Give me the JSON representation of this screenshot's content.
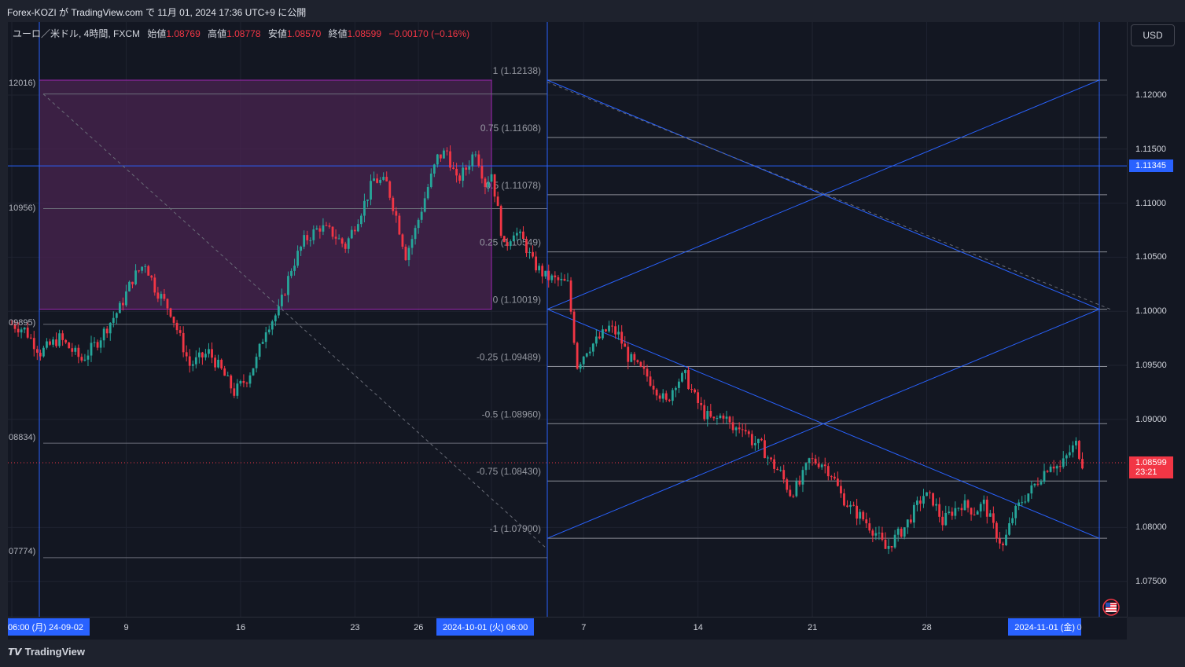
{
  "header": {
    "published": "Forex-KOZI が TradingView.com で 11月 01, 2024 17:36 UTC+9 に公開"
  },
  "legend": {
    "symbol": "ユーロ／米ドル, 4時間, FXCM",
    "open_label": "始値",
    "open": "1.08769",
    "high_label": "高値",
    "high": "1.08778",
    "low_label": "安値",
    "low": "1.08570",
    "close_label": "終値",
    "close": "1.08599",
    "change": "−0.00170 (−0.16%)"
  },
  "currency_button": "USD",
  "footer_logo": "TradingView",
  "colors": {
    "up": "#26a69a",
    "down": "#f23645",
    "blue": "#2962ff",
    "fib_box": "#4a2450",
    "fib_line": "#9c27b0",
    "background": "#131722"
  },
  "chart_data": {
    "type": "candlestick",
    "title": "",
    "price_axis": {
      "ylim": [
        1.0725,
        1.1255
      ],
      "ticks": [
        "1.12000",
        "1.11500",
        "1.11000",
        "1.10500",
        "1.10000",
        "1.09500",
        "1.09000",
        "1.08000",
        "1.07500"
      ]
    },
    "price_tags": [
      {
        "label": "1.11345",
        "value": 1.11345,
        "color": "#2962ff"
      },
      {
        "label": "1.08599",
        "value": 1.08599,
        "sub": "23:21",
        "color": "#f23645"
      }
    ],
    "time_axis": {
      "ticks": [
        {
          "label": "24-09-02 (月)   06:00",
          "highlight": true,
          "index": 0
        },
        {
          "label": "9",
          "index": 36
        },
        {
          "label": "16",
          "index": 72
        },
        {
          "label": "23",
          "index": 108
        },
        {
          "label": "26",
          "index": 128
        },
        {
          "label": "2024-10-01 (火)   06:00",
          "highlight": true,
          "index": 151
        },
        {
          "label": "7",
          "index": 180
        },
        {
          "label": "14",
          "index": 216
        },
        {
          "label": "21",
          "index": 252
        },
        {
          "label": "28",
          "index": 288
        },
        {
          "label": "2024-11-01 (金)",
          "highlight": true,
          "index": 331
        },
        {
          "label": "0",
          "index": 336
        }
      ]
    },
    "left_labels": [
      {
        "label": "12016)",
        "value": 1.12016
      },
      {
        "label": "10956)",
        "value": 1.10956
      },
      {
        "label": "09895)",
        "value": 1.09895
      },
      {
        "label": "08834)",
        "value": 1.08834
      },
      {
        "label": "07774)",
        "value": 1.07774
      }
    ],
    "fib_levels": [
      {
        "label": "1 (1.12138)",
        "value": 1.12138
      },
      {
        "label": "0.75 (1.11608)",
        "value": 1.11608
      },
      {
        "label": "0.5 (1.11078)",
        "value": 1.11078
      },
      {
        "label": "0.25 (1.10549)",
        "value": 1.10549
      },
      {
        "label": "0 (1.10019)",
        "value": 1.10019
      },
      {
        "label": "-0.25 (1.09489)",
        "value": 1.09489
      },
      {
        "label": "-0.5 (1.08960)",
        "value": 1.0896
      },
      {
        "label": "-0.75 (1.08430)",
        "value": 1.0843
      },
      {
        "label": "-1 (1.07900)",
        "value": 1.079
      }
    ],
    "horizontal_line": 1.11345,
    "last_price": 1.08599,
    "candle_count": 338,
    "path_points": [
      [
        0,
        1.0988
      ],
      [
        4,
        1.0983
      ],
      [
        9,
        1.0962
      ],
      [
        15,
        1.0975
      ],
      [
        22,
        1.0955
      ],
      [
        27,
        1.0972
      ],
      [
        31,
        1.099
      ],
      [
        34,
        1.1003
      ],
      [
        38,
        1.103
      ],
      [
        42,
        1.1045
      ],
      [
        45,
        1.1022
      ],
      [
        50,
        1.1
      ],
      [
        56,
        1.095
      ],
      [
        62,
        1.0962
      ],
      [
        66,
        1.0945
      ],
      [
        70,
        1.0925
      ],
      [
        74,
        1.0938
      ],
      [
        77,
        1.0955
      ],
      [
        80,
        1.0985
      ],
      [
        84,
        1.1
      ],
      [
        88,
        1.104
      ],
      [
        92,
        1.1065
      ],
      [
        97,
        1.1078
      ],
      [
        101,
        1.1072
      ],
      [
        105,
        1.106
      ],
      [
        108,
        1.108
      ],
      [
        111,
        1.11
      ],
      [
        114,
        1.1122
      ],
      [
        118,
        1.1118
      ],
      [
        121,
        1.1088
      ],
      [
        124,
        1.1052
      ],
      [
        127,
        1.1075
      ],
      [
        131,
        1.1115
      ],
      [
        134,
        1.1142
      ],
      [
        137,
        1.1148
      ],
      [
        140,
        1.112
      ],
      [
        143,
        1.1132
      ],
      [
        146,
        1.115
      ],
      [
        149,
        1.1118
      ],
      [
        151,
        1.1128
      ],
      [
        155,
        1.1058
      ],
      [
        158,
        1.1075
      ],
      [
        161,
        1.1065
      ],
      [
        164,
        1.1045
      ],
      [
        168,
        1.1032
      ],
      [
        172,
        1.1028
      ],
      [
        175,
        1.1025
      ],
      [
        178,
        1.095
      ],
      [
        181,
        1.0965
      ],
      [
        185,
        1.0975
      ],
      [
        188,
        1.0985
      ],
      [
        191,
        1.0978
      ],
      [
        194,
        1.0958
      ],
      [
        197,
        1.0948
      ],
      [
        200,
        1.094
      ],
      [
        203,
        1.0928
      ],
      [
        206,
        1.0915
      ],
      [
        209,
        1.0935
      ],
      [
        212,
        1.094
      ],
      [
        215,
        1.092
      ],
      [
        218,
        1.0905
      ],
      [
        221,
        1.0898
      ],
      [
        224,
        1.0905
      ],
      [
        227,
        1.089
      ],
      [
        230,
        1.0895
      ],
      [
        233,
        1.088
      ],
      [
        236,
        1.0875
      ],
      [
        239,
        1.086
      ],
      [
        242,
        1.085
      ],
      [
        245,
        1.0832
      ],
      [
        248,
        1.084
      ],
      [
        251,
        1.0862
      ],
      [
        255,
        1.086
      ],
      [
        258,
        1.085
      ],
      [
        261,
        1.083
      ],
      [
        264,
        1.0818
      ],
      [
        268,
        1.0808
      ],
      [
        272,
        1.0795
      ],
      [
        275,
        1.078
      ],
      [
        278,
        1.079
      ],
      [
        281,
        1.08
      ],
      [
        284,
        1.0815
      ],
      [
        287,
        1.083
      ],
      [
        290,
        1.0825
      ],
      [
        293,
        1.0805
      ],
      [
        296,
        1.0815
      ],
      [
        299,
        1.0822
      ],
      [
        303,
        1.0815
      ],
      [
        306,
        1.0822
      ],
      [
        309,
        1.08
      ],
      [
        312,
        1.0782
      ],
      [
        315,
        1.081
      ],
      [
        318,
        1.0825
      ],
      [
        321,
        1.0835
      ],
      [
        324,
        1.0848
      ],
      [
        327,
        1.086
      ],
      [
        330,
        1.0855
      ],
      [
        333,
        1.087
      ],
      [
        335,
        1.0877
      ],
      [
        337,
        1.086
      ]
    ],
    "candle_width_note": "OHLC derived procedurally from path_points"
  }
}
